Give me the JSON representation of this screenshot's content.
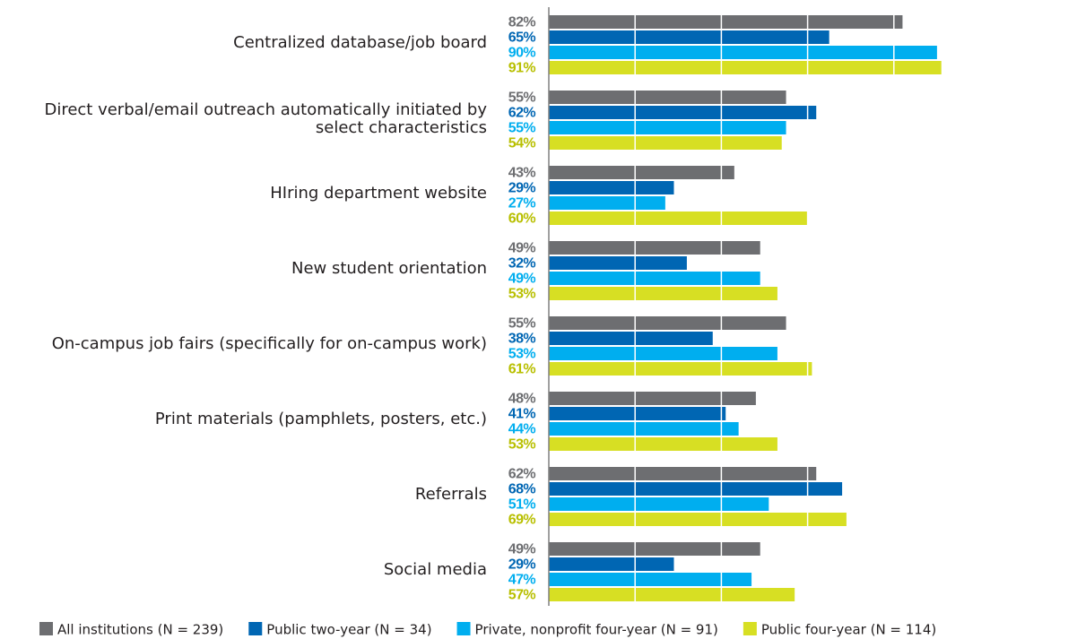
{
  "chart_data": {
    "type": "hbar",
    "categories": [
      "Centralized database/job board",
      "Direct verbal/email outreach automatically initiated by select characteristics",
      "HIring department website",
      "New student orientation",
      "On-campus job fairs (specifically for on-campus work)",
      "Print materials (pamphlets, posters, etc.)",
      "Referrals",
      "Social media"
    ],
    "series": [
      {
        "name": "All institutions (N = 239)",
        "color": "#6d6e71",
        "values": [
          82,
          55,
          43,
          49,
          55,
          48,
          62,
          49
        ],
        "value_labels": [
          "82%",
          "55%",
          "43%",
          "49%",
          "55%",
          "48%",
          "62%",
          "49%"
        ]
      },
      {
        "name": "Public two-year (N = 34)",
        "color": "#0066b3",
        "values": [
          65,
          62,
          29,
          32,
          38,
          41,
          68,
          29
        ],
        "value_labels": [
          "65%",
          "62%",
          "29%",
          "32%",
          "38%",
          "41%",
          "68%",
          "29%"
        ]
      },
      {
        "name": "Private, nonprofit four-year (N = 91)",
        "color": "#00aeef",
        "values": [
          90,
          55,
          27,
          49,
          53,
          44,
          51,
          47
        ],
        "value_labels": [
          "90%",
          "55%",
          "27%",
          "49%",
          "53%",
          "44%",
          "51%",
          "47%"
        ]
      },
      {
        "name": "Public four-year (N = 114)",
        "color": "#d7df23",
        "values": [
          91,
          54,
          60,
          53,
          61,
          53,
          69,
          57
        ],
        "value_labels": [
          "91%",
          "54%",
          "60%",
          "53%",
          "61%",
          "53%",
          "69%",
          "57%"
        ]
      }
    ],
    "xlim": [
      0,
      100
    ],
    "xgrid": [
      20,
      40,
      60,
      80
    ],
    "legend": "bottom"
  }
}
